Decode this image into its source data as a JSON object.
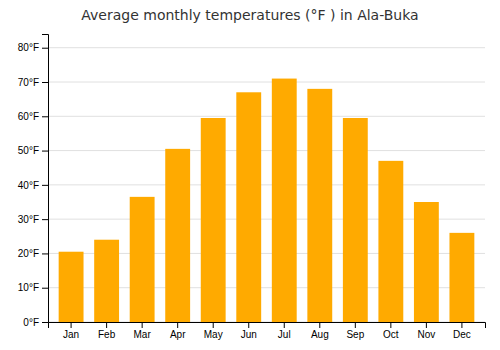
{
  "chart_data": {
    "type": "bar",
    "title": "Average monthly temperatures (°F ) in Ala-Buka",
    "categories": [
      "Jan",
      "Feb",
      "Mar",
      "Apr",
      "May",
      "Jun",
      "Jul",
      "Aug",
      "Sep",
      "Oct",
      "Nov",
      "Dec"
    ],
    "values": [
      20.5,
      24,
      36.5,
      50.5,
      59.5,
      67,
      71,
      68,
      59.5,
      47,
      35,
      26
    ],
    "color": "#FFAA00",
    "ylim": [
      0,
      84
    ],
    "yticks": [
      {
        "value": 0,
        "label": "0°F"
      },
      {
        "value": 10,
        "label": "10°F"
      },
      {
        "value": 20,
        "label": "20°F"
      },
      {
        "value": 30,
        "label": "30°F"
      },
      {
        "value": 40,
        "label": "40°F"
      },
      {
        "value": 50,
        "label": "50°F"
      },
      {
        "value": 60,
        "label": "60°F"
      },
      {
        "value": 70,
        "label": "70°F"
      },
      {
        "value": 80,
        "label": "80°F"
      }
    ],
    "grid": true
  }
}
